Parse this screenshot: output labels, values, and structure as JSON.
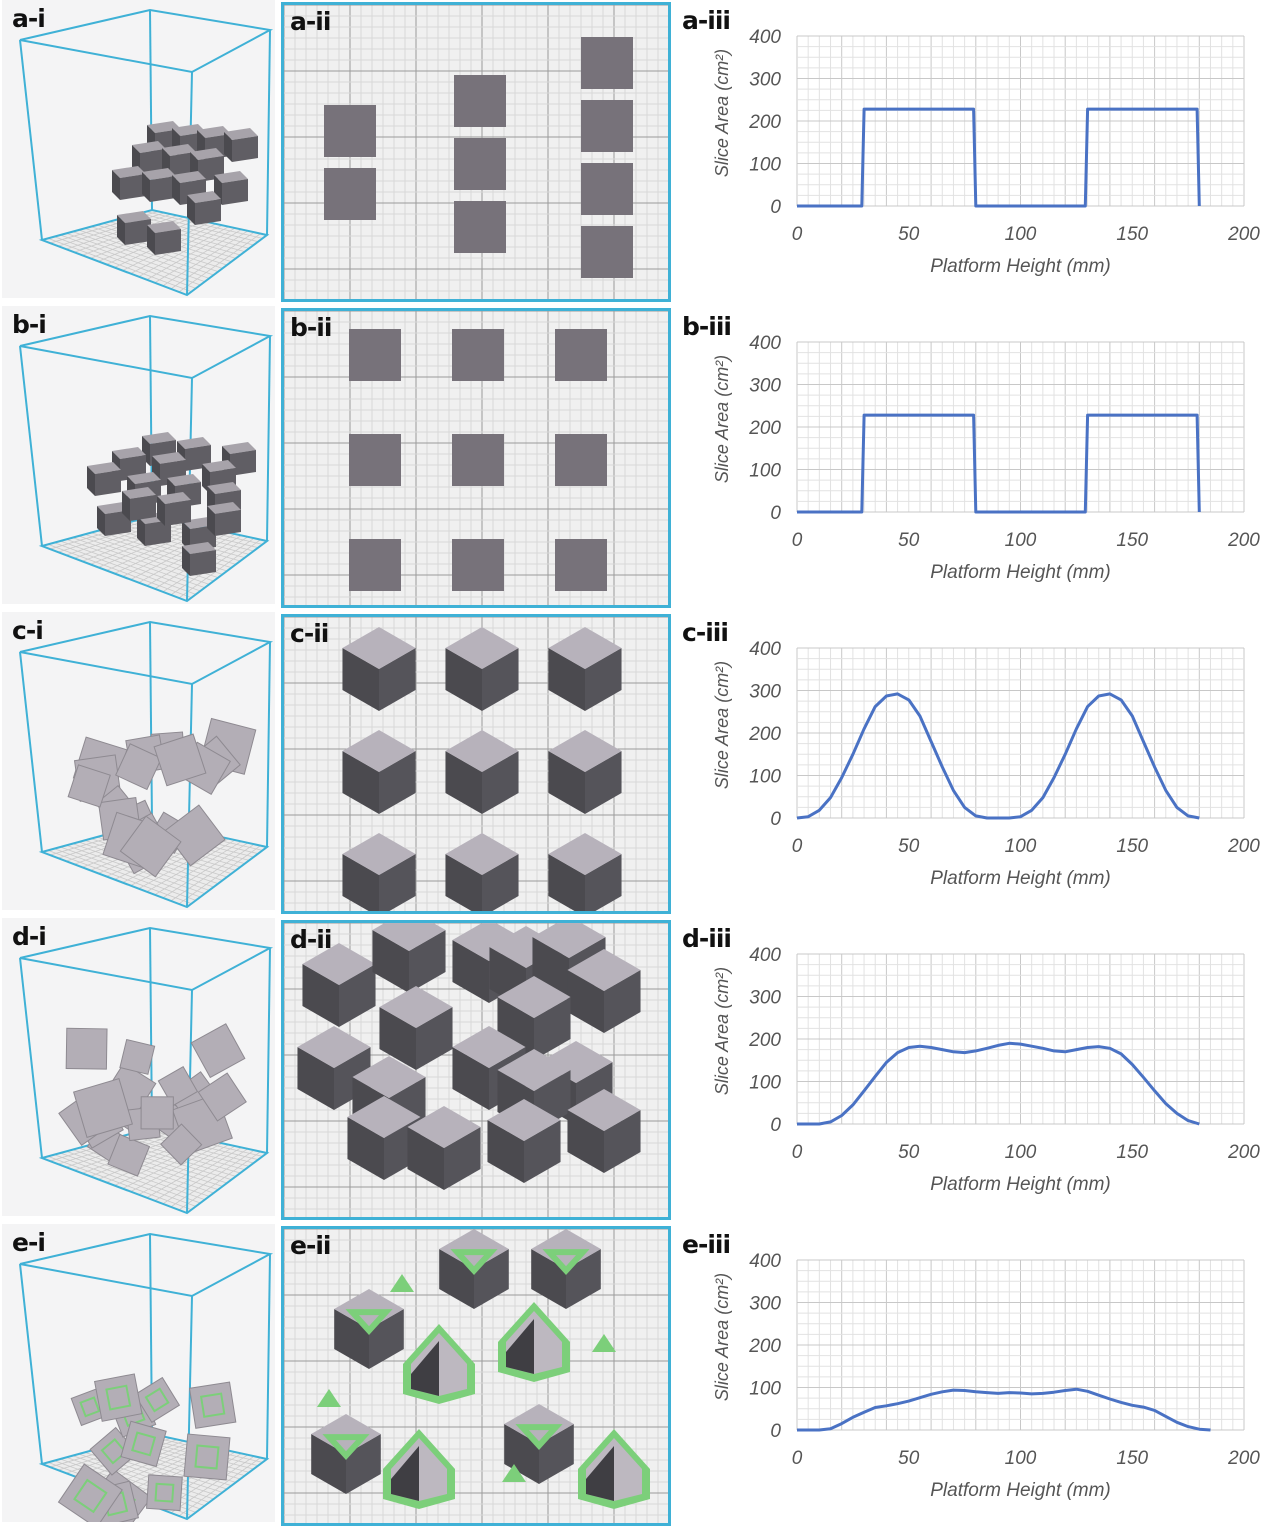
{
  "colors": {
    "frame": "#3fb1d6",
    "cube_top": "#b7b2bb",
    "cube_side": "#4b4a4f",
    "square": "#77727a",
    "grid_minor": "#d8d8d8",
    "grid_major": "#9a9a9a",
    "line": "#4a72c4",
    "support": "#7ccf7a"
  },
  "rows": [
    {
      "id": "a",
      "label_i": "a-i",
      "label_ii": "a-ii",
      "label_iii": "a-iii",
      "view": "squares-grouped"
    },
    {
      "id": "b",
      "label_i": "b-i",
      "label_ii": "b-ii",
      "label_iii": "b-iii",
      "view": "squares-grid"
    },
    {
      "id": "c",
      "label_i": "c-i",
      "label_ii": "c-ii",
      "label_iii": "c-iii",
      "view": "cubes-grid"
    },
    {
      "id": "d",
      "label_i": "d-i",
      "label_ii": "d-ii",
      "label_iii": "d-iii",
      "view": "cubes-packed"
    },
    {
      "id": "e",
      "label_i": "e-i",
      "label_ii": "e-ii",
      "label_iii": "e-iii",
      "view": "cubes-supported"
    }
  ],
  "chart_data": [
    {
      "type": "line",
      "xlabel": "Platform Height (mm)",
      "ylabel": "Slice Area (cm²)",
      "xlim": [
        0,
        200
      ],
      "ylim": [
        0,
        400
      ],
      "xticks": [
        0,
        50,
        100,
        150,
        200
      ],
      "yticks": [
        0,
        100,
        200,
        300,
        400
      ],
      "grid": true,
      "x": [
        0,
        29,
        30,
        79,
        80,
        129,
        130,
        179,
        180
      ],
      "y": [
        0,
        0,
        228,
        228,
        0,
        0,
        228,
        228,
        0
      ]
    },
    {
      "type": "line",
      "xlabel": "Platform Height (mm)",
      "ylabel": "Slice Area (cm²)",
      "xlim": [
        0,
        200
      ],
      "ylim": [
        0,
        400
      ],
      "xticks": [
        0,
        50,
        100,
        150,
        200
      ],
      "yticks": [
        0,
        100,
        200,
        300,
        400
      ],
      "grid": true,
      "x": [
        0,
        29,
        30,
        79,
        80,
        129,
        130,
        179,
        180
      ],
      "y": [
        0,
        0,
        228,
        228,
        0,
        0,
        228,
        228,
        0
      ]
    },
    {
      "type": "line",
      "xlabel": "Platform Height (mm)",
      "ylabel": "Slice Area (cm²)",
      "xlim": [
        0,
        200
      ],
      "ylim": [
        0,
        400
      ],
      "xticks": [
        0,
        50,
        100,
        150,
        200
      ],
      "yticks": [
        0,
        100,
        200,
        300,
        400
      ],
      "grid": true,
      "x": [
        0,
        5,
        10,
        15,
        20,
        25,
        30,
        35,
        40,
        45,
        50,
        55,
        60,
        65,
        70,
        75,
        80,
        85,
        90,
        95,
        100,
        105,
        110,
        115,
        120,
        125,
        130,
        135,
        140,
        145,
        150,
        155,
        160,
        165,
        170,
        175,
        180
      ],
      "y": [
        0,
        3,
        18,
        48,
        95,
        150,
        210,
        262,
        287,
        292,
        278,
        240,
        180,
        120,
        65,
        25,
        5,
        0,
        0,
        0,
        3,
        18,
        48,
        95,
        150,
        210,
        262,
        287,
        292,
        278,
        240,
        180,
        120,
        65,
        25,
        5,
        0
      ]
    },
    {
      "type": "line",
      "xlabel": "Platform Height (mm)",
      "ylabel": "Slice Area (cm²)",
      "xlim": [
        0,
        200
      ],
      "ylim": [
        0,
        400
      ],
      "xticks": [
        0,
        50,
        100,
        150,
        200
      ],
      "yticks": [
        0,
        100,
        200,
        300,
        400
      ],
      "grid": true,
      "x": [
        0,
        10,
        15,
        20,
        25,
        30,
        35,
        40,
        45,
        50,
        55,
        60,
        65,
        70,
        75,
        80,
        85,
        90,
        95,
        100,
        105,
        110,
        115,
        120,
        125,
        130,
        135,
        140,
        145,
        150,
        155,
        160,
        165,
        170,
        175,
        180
      ],
      "y": [
        0,
        0,
        5,
        20,
        45,
        78,
        112,
        145,
        168,
        180,
        183,
        180,
        175,
        170,
        168,
        172,
        178,
        185,
        190,
        188,
        183,
        178,
        172,
        170,
        175,
        180,
        182,
        178,
        165,
        140,
        110,
        78,
        48,
        25,
        8,
        0
      ]
    },
    {
      "type": "line",
      "xlabel": "Platform Height (mm)",
      "ylabel": "Slice Area (cm²)",
      "xlim": [
        0,
        200
      ],
      "ylim": [
        0,
        400
      ],
      "xticks": [
        0,
        50,
        100,
        150,
        200
      ],
      "yticks": [
        0,
        100,
        200,
        300,
        400
      ],
      "grid": true,
      "x": [
        0,
        10,
        15,
        20,
        25,
        30,
        35,
        40,
        45,
        50,
        55,
        60,
        65,
        70,
        75,
        80,
        85,
        90,
        95,
        100,
        105,
        110,
        115,
        120,
        125,
        130,
        135,
        140,
        145,
        150,
        155,
        160,
        165,
        170,
        175,
        180,
        185
      ],
      "y": [
        0,
        0,
        3,
        15,
        30,
        42,
        53,
        57,
        62,
        68,
        76,
        84,
        90,
        94,
        93,
        90,
        88,
        86,
        88,
        87,
        85,
        86,
        89,
        93,
        96,
        91,
        82,
        73,
        65,
        58,
        54,
        46,
        32,
        18,
        8,
        2,
        0
      ]
    }
  ]
}
